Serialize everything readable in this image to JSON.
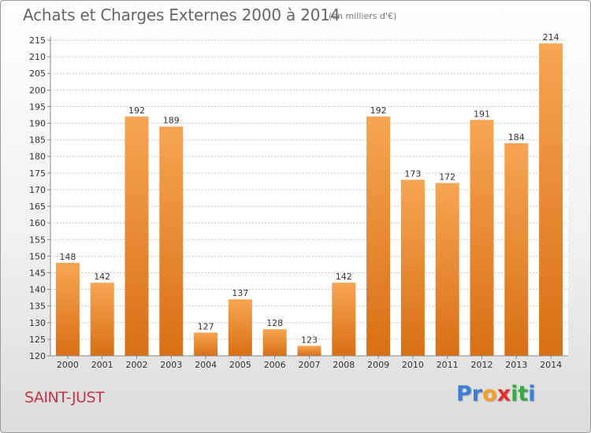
{
  "header": {
    "title": "Achats et Charges Externes 2000 à 2014",
    "subtitle": "(en milliers d'€)"
  },
  "footer": {
    "place": "SAINT-JUST",
    "brand_letters": [
      {
        "ch": "P",
        "color": "#3a7fd5"
      },
      {
        "ch": "r",
        "color": "#3a7fd5"
      },
      {
        "ch": "o",
        "color": "#f2a126"
      },
      {
        "ch": "x",
        "color": "#e03030"
      },
      {
        "ch": "i",
        "color": "#3aa845"
      },
      {
        "ch": "t",
        "color": "#3aa845"
      },
      {
        "ch": "i",
        "color": "#3a7fd5"
      }
    ]
  },
  "colors": {
    "bar_light": "#f7a552",
    "bar_dark": "#d86f15",
    "grid": "#c8c8c8",
    "axis": "#888888",
    "text": "#333333"
  },
  "chart_data": {
    "type": "bar",
    "categories": [
      "2000",
      "2001",
      "2002",
      "2003",
      "2004",
      "2005",
      "2006",
      "2007",
      "2008",
      "2009",
      "2010",
      "2011",
      "2012",
      "2013",
      "2014"
    ],
    "values": [
      148,
      142,
      192,
      189,
      127,
      137,
      128,
      123,
      142,
      192,
      173,
      172,
      191,
      184,
      214
    ],
    "ylim": [
      120,
      215
    ],
    "yticks": [
      120,
      125,
      130,
      135,
      140,
      145,
      150,
      155,
      160,
      165,
      170,
      175,
      180,
      185,
      190,
      195,
      200,
      205,
      210,
      215
    ],
    "grid": true,
    "data_labels": true
  }
}
